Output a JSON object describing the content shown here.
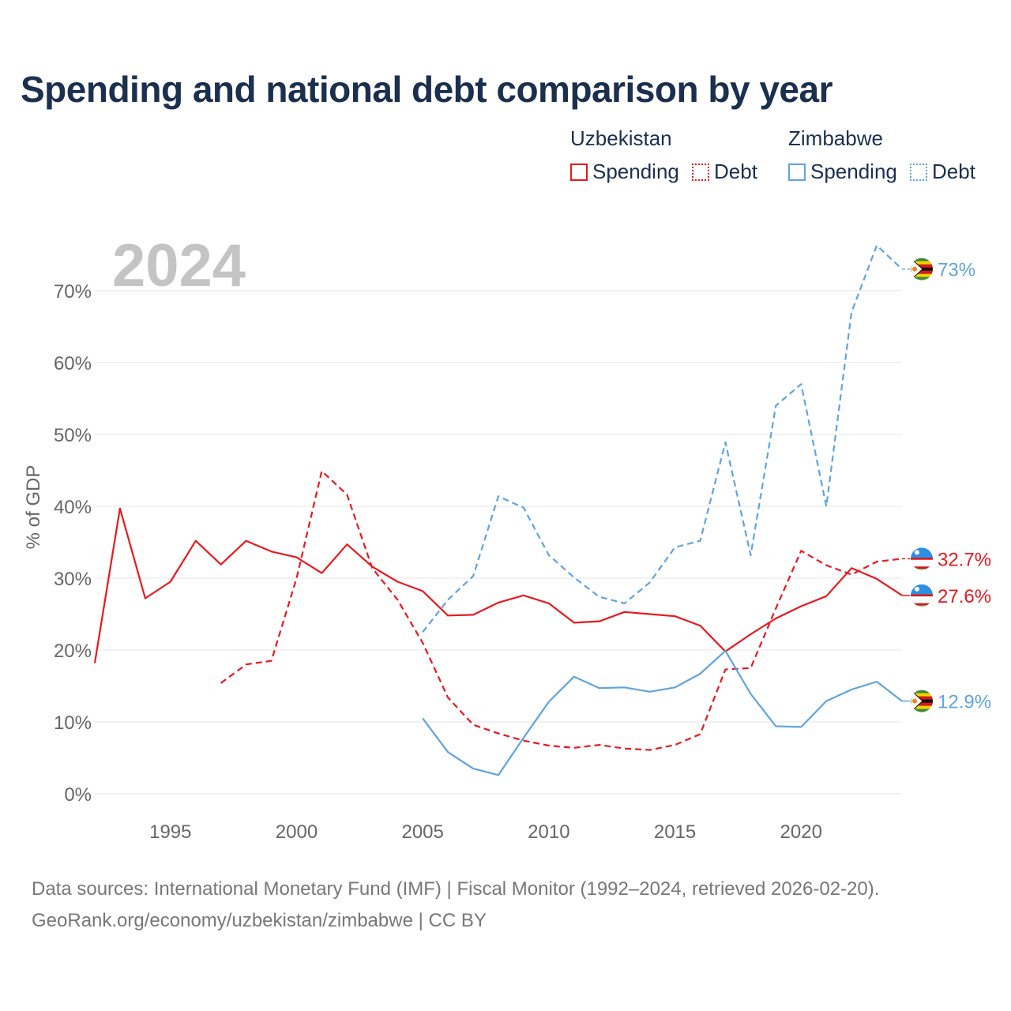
{
  "title": "Spending and national debt comparison by year",
  "legend": {
    "group1": "Uzbekistan",
    "group2": "Zimbabwe",
    "spending": "Spending",
    "debt": "Debt"
  },
  "colors": {
    "uzbekistan": "#e8191e",
    "zimbabwe": "#5fa4df",
    "grid": "#e6e6e6",
    "axis_text": "#666666"
  },
  "source": {
    "line1": "Data sources: International Monetary Fund (IMF) | Fiscal Monitor (1992–2024, retrieved 2026-02-20).",
    "line2": "GeoRank.org/economy/uzbekistan/zimbabwe | CC BY"
  },
  "chart_data": {
    "type": "line",
    "year_label": "2024",
    "ylabel": "% of GDP",
    "xlim": [
      1992,
      2024
    ],
    "ylim": [
      0,
      78
    ],
    "x_ticks": [
      1995,
      2000,
      2005,
      2010,
      2015,
      2020
    ],
    "y_ticks": [
      0,
      10,
      20,
      30,
      40,
      50,
      60,
      70
    ],
    "y_tick_labels": [
      "0%",
      "10%",
      "20%",
      "30%",
      "40%",
      "50%",
      "60%",
      "70%"
    ],
    "series": [
      {
        "name": "Uzbekistan Spending",
        "country": "Uzbekistan",
        "style": "solid",
        "color": "#e8191e",
        "end_label": "27.6%",
        "points": [
          [
            1992,
            18.2
          ],
          [
            1993,
            39.7
          ],
          [
            1994,
            27.2
          ],
          [
            1995,
            29.5
          ],
          [
            1996,
            35.2
          ],
          [
            1997,
            31.9
          ],
          [
            1998,
            35.2
          ],
          [
            1999,
            33.7
          ],
          [
            2000,
            32.9
          ],
          [
            2001,
            30.7
          ],
          [
            2002,
            34.7
          ],
          [
            2003,
            31.6
          ],
          [
            2004,
            29.5
          ],
          [
            2005,
            28.2
          ],
          [
            2006,
            24.8
          ],
          [
            2007,
            24.9
          ],
          [
            2008,
            26.6
          ],
          [
            2009,
            27.6
          ],
          [
            2010,
            26.5
          ],
          [
            2011,
            23.8
          ],
          [
            2012,
            24.0
          ],
          [
            2013,
            25.3
          ],
          [
            2014,
            25.0
          ],
          [
            2015,
            24.7
          ],
          [
            2016,
            23.4
          ],
          [
            2017,
            19.8
          ],
          [
            2018,
            22.2
          ],
          [
            2019,
            24.4
          ],
          [
            2020,
            26.1
          ],
          [
            2021,
            27.5
          ],
          [
            2022,
            31.4
          ],
          [
            2023,
            29.9
          ],
          [
            2024,
            27.6
          ]
        ]
      },
      {
        "name": "Uzbekistan Debt",
        "country": "Uzbekistan",
        "style": "dashed",
        "color": "#e8191e",
        "end_label": "32.7%",
        "points": [
          [
            1997,
            15.4
          ],
          [
            1998,
            18.0
          ],
          [
            1999,
            18.5
          ],
          [
            2000,
            30.0
          ],
          [
            2001,
            44.9
          ],
          [
            2002,
            41.6
          ],
          [
            2003,
            31.4
          ],
          [
            2004,
            27.0
          ],
          [
            2005,
            21.0
          ],
          [
            2006,
            13.4
          ],
          [
            2007,
            9.6
          ],
          [
            2008,
            8.4
          ],
          [
            2009,
            7.4
          ],
          [
            2010,
            6.7
          ],
          [
            2011,
            6.4
          ],
          [
            2012,
            6.8
          ],
          [
            2013,
            6.3
          ],
          [
            2014,
            6.1
          ],
          [
            2015,
            6.8
          ],
          [
            2016,
            8.3
          ],
          [
            2017,
            17.3
          ],
          [
            2018,
            17.5
          ],
          [
            2019,
            25.8
          ],
          [
            2020,
            33.8
          ],
          [
            2021,
            31.8
          ],
          [
            2022,
            30.5
          ],
          [
            2023,
            32.3
          ],
          [
            2024,
            32.7
          ]
        ]
      },
      {
        "name": "Zimbabwe Spending",
        "country": "Zimbabwe",
        "style": "solid",
        "color": "#5fa4df",
        "end_label": "12.9%",
        "points": [
          [
            2005,
            10.5
          ],
          [
            2006,
            5.8
          ],
          [
            2007,
            3.5
          ],
          [
            2008,
            2.6
          ],
          [
            2009,
            7.8
          ],
          [
            2010,
            12.8
          ],
          [
            2011,
            16.3
          ],
          [
            2012,
            14.7
          ],
          [
            2013,
            14.8
          ],
          [
            2014,
            14.2
          ],
          [
            2015,
            14.8
          ],
          [
            2016,
            16.7
          ],
          [
            2017,
            19.9
          ],
          [
            2018,
            13.9
          ],
          [
            2019,
            9.4
          ],
          [
            2020,
            9.3
          ],
          [
            2021,
            12.9
          ],
          [
            2022,
            14.5
          ],
          [
            2023,
            15.6
          ],
          [
            2024,
            12.9
          ]
        ]
      },
      {
        "name": "Zimbabwe Debt",
        "country": "Zimbabwe",
        "style": "dashed",
        "color": "#5fa4df",
        "end_label": "73%",
        "points": [
          [
            2005,
            22.5
          ],
          [
            2006,
            27.0
          ],
          [
            2007,
            30.3
          ],
          [
            2008,
            41.4
          ],
          [
            2009,
            39.8
          ],
          [
            2010,
            33.2
          ],
          [
            2011,
            30.1
          ],
          [
            2012,
            27.4
          ],
          [
            2013,
            26.5
          ],
          [
            2014,
            29.4
          ],
          [
            2015,
            34.3
          ],
          [
            2016,
            35.2
          ],
          [
            2017,
            48.9
          ],
          [
            2018,
            33.2
          ],
          [
            2019,
            54.0
          ],
          [
            2020,
            57.0
          ],
          [
            2021,
            40.0
          ],
          [
            2022,
            67.0
          ],
          [
            2023,
            76.3
          ],
          [
            2024,
            73.0
          ]
        ]
      }
    ]
  }
}
